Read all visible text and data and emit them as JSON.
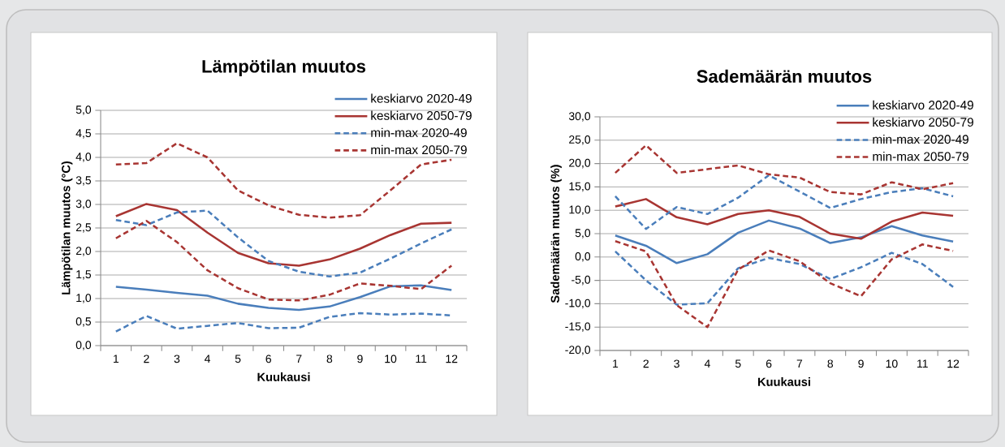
{
  "chart_data": [
    {
      "type": "line",
      "title": "Lämpötilan muutos",
      "xlabel": "Kuukausi",
      "ylabel": "Lämpötilan muutos (°C)",
      "categories": [
        "1",
        "2",
        "3",
        "4",
        "5",
        "6",
        "7",
        "8",
        "9",
        "10",
        "11",
        "12"
      ],
      "ylim": [
        0,
        5
      ],
      "yticks": [
        {
          "value": 0,
          "label": "0,0"
        },
        {
          "value": 0.5,
          "label": "0,5"
        },
        {
          "value": 1,
          "label": "1,0"
        },
        {
          "value": 1.5,
          "label": "1,5"
        },
        {
          "value": 2,
          "label": "2,0"
        },
        {
          "value": 2.5,
          "label": "2,5"
        },
        {
          "value": 3,
          "label": "3,0"
        },
        {
          "value": 3.5,
          "label": "3,5"
        },
        {
          "value": 4,
          "label": "4,0"
        },
        {
          "value": 4.5,
          "label": "4,5"
        },
        {
          "value": 5,
          "label": "5,0"
        }
      ],
      "grid": "y",
      "legend": "top right",
      "marker": "none",
      "series": [
        {
          "name": "keskiarvo 2020-49",
          "color": "#4a7ebb",
          "line_style": "solid",
          "values": [
            1.25,
            1.19,
            1.12,
            1.06,
            0.89,
            0.8,
            0.76,
            0.83,
            1.03,
            1.26,
            1.28,
            1.18
          ]
        },
        {
          "name": "keskiarvo 2050-79",
          "color": "#a83532",
          "line_style": "solid",
          "values": [
            2.75,
            3.01,
            2.88,
            2.4,
            1.97,
            1.75,
            1.7,
            1.83,
            2.06,
            2.35,
            2.59,
            2.61
          ]
        },
        {
          "name": "min-max 2020-49",
          "color": "#4a7ebb",
          "line_style": "dashed",
          "values": [
            2.67,
            2.56,
            2.83,
            2.87,
            2.3,
            1.8,
            1.57,
            1.47,
            1.55,
            1.85,
            2.17,
            2.47
          ]
        },
        {
          "color": "#4a7ebb",
          "line_style": "dashed",
          "values": [
            0.3,
            0.63,
            0.36,
            0.42,
            0.48,
            0.37,
            0.38,
            0.61,
            0.69,
            0.66,
            0.68,
            0.64
          ]
        },
        {
          "name": "min-max 2050-79",
          "color": "#a83532",
          "line_style": "dashed",
          "values": [
            3.85,
            3.88,
            4.3,
            4.0,
            3.3,
            2.98,
            2.78,
            2.72,
            2.77,
            3.3,
            3.85,
            3.95
          ]
        },
        {
          "color": "#a83532",
          "line_style": "dashed",
          "values": [
            2.28,
            2.65,
            2.2,
            1.6,
            1.22,
            0.98,
            0.96,
            1.08,
            1.32,
            1.27,
            1.2,
            1.7
          ]
        }
      ]
    },
    {
      "type": "line",
      "title": "Sademäärän muutos",
      "xlabel": "Kuukausi",
      "ylabel": "Sademäärän muutos (%)",
      "categories": [
        "1",
        "2",
        "3",
        "4",
        "5",
        "6",
        "7",
        "8",
        "9",
        "10",
        "11",
        "12"
      ],
      "ylim": [
        -20,
        30
      ],
      "yticks": [
        {
          "value": -20,
          "label": "-20,0"
        },
        {
          "value": -15,
          "label": "-15,0"
        },
        {
          "value": -10,
          "label": "-10,0"
        },
        {
          "value": -5,
          "label": "-5,0"
        },
        {
          "value": 0,
          "label": "0,0"
        },
        {
          "value": 5,
          "label": "5,0"
        },
        {
          "value": 10,
          "label": "10,0"
        },
        {
          "value": 15,
          "label": "15,0"
        },
        {
          "value": 20,
          "label": "20,0"
        },
        {
          "value": 25,
          "label": "25,0"
        },
        {
          "value": 30,
          "label": "30,0"
        }
      ],
      "grid": "y",
      "legend": "top right",
      "marker": "none",
      "series": [
        {
          "name": "keskiarvo 2020-49",
          "color": "#4a7ebb",
          "line_style": "solid",
          "values": [
            4.6,
            2.4,
            -1.3,
            0.6,
            5.2,
            7.8,
            6.1,
            3.0,
            4.2,
            6.6,
            4.6,
            3.3
          ]
        },
        {
          "name": "keskiarvo 2050-79",
          "color": "#a83532",
          "line_style": "solid",
          "values": [
            10.8,
            12.4,
            8.5,
            7.0,
            9.2,
            10.0,
            8.6,
            5.0,
            3.9,
            7.6,
            9.5,
            8.8
          ]
        },
        {
          "name": "min-max 2020-49",
          "color": "#4a7ebb",
          "line_style": "dashed",
          "values": [
            13.0,
            6.0,
            10.7,
            9.2,
            12.7,
            17.5,
            14.0,
            10.5,
            12.4,
            13.9,
            14.7,
            13.0
          ]
        },
        {
          "color": "#4a7ebb",
          "line_style": "dashed",
          "values": [
            1.2,
            -5.0,
            -10.2,
            -9.9,
            -2.4,
            -0.2,
            -1.5,
            -4.7,
            -2.2,
            0.9,
            -1.5,
            -6.4
          ]
        },
        {
          "name": "min-max 2050-79",
          "color": "#a83532",
          "line_style": "dashed",
          "values": [
            18.0,
            23.9,
            18.0,
            18.8,
            19.6,
            17.7,
            17.0,
            13.9,
            13.4,
            16.0,
            14.5,
            15.8
          ]
        },
        {
          "color": "#a83532",
          "line_style": "dashed",
          "values": [
            3.4,
            1.2,
            -10.3,
            -15.0,
            -2.7,
            1.4,
            -0.9,
            -5.6,
            -8.4,
            -0.5,
            2.7,
            1.3
          ]
        }
      ]
    }
  ]
}
